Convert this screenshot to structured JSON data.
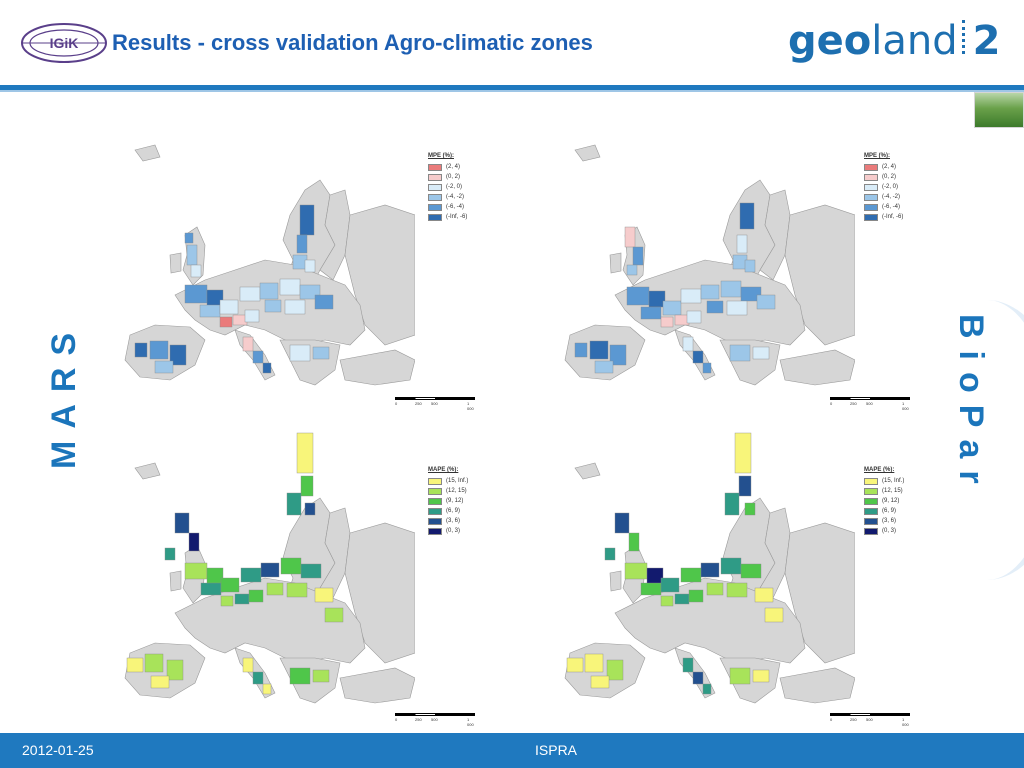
{
  "header": {
    "title": "Results - cross validation  Agro-climatic zones",
    "logo_left_text": "IGiK",
    "logo_right_part1": "geo",
    "logo_right_part2": "land",
    "logo_right_part3": "2"
  },
  "side_labels": {
    "left": "MARS",
    "right": "BioPar"
  },
  "legends": {
    "mpe": {
      "title": "MPE (%):",
      "entries": [
        {
          "label": "(2, 4)",
          "color": "#ea7b7b"
        },
        {
          "label": "(0, 2)",
          "color": "#f6cccc"
        },
        {
          "label": "(-2, 0)",
          "color": "#d9ecf8"
        },
        {
          "label": "(-4, -2)",
          "color": "#9cc6e8"
        },
        {
          "label": "(-6, -4)",
          "color": "#5b98d2"
        },
        {
          "label": "(-Inf, -6)",
          "color": "#2f6cb0"
        }
      ]
    },
    "mape": {
      "title": "MAPE (%):",
      "entries": [
        {
          "label": "(15, Inf.)",
          "color": "#f8f57a"
        },
        {
          "label": "(12, 15)",
          "color": "#a8e35a"
        },
        {
          "label": "(9, 12)",
          "color": "#4fc64a"
        },
        {
          "label": "(6, 9)",
          "color": "#2f9b86"
        },
        {
          "label": "(3, 6)",
          "color": "#23508f"
        },
        {
          "label": "(0, 3)",
          "color": "#121a6e"
        }
      ]
    }
  },
  "scalebar_labels": [
    "0",
    "250",
    "500",
    "1 000"
  ],
  "footer": {
    "date": "2012-01-25",
    "center": "ISPRA"
  }
}
